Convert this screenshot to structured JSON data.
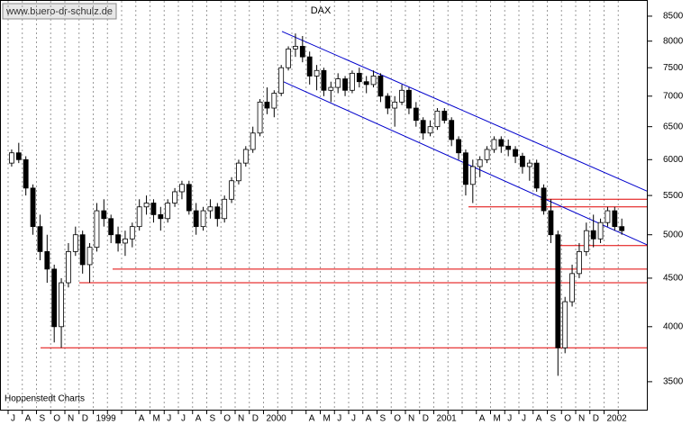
{
  "chart_data": {
    "type": "candlestick",
    "title": "DAX",
    "watermark": "www.buero-dr-schulz.de",
    "source": "Hoppenstedt Charts",
    "log_scale": true,
    "ylim": [
      3270,
      8840
    ],
    "yticks": [
      3500,
      4000,
      4500,
      5000,
      5500,
      6000,
      6500,
      7000,
      7500,
      8000,
      8500
    ],
    "categories": [
      "J",
      "A",
      "S",
      "O",
      "N",
      "D",
      "1999",
      null,
      null,
      "A",
      "M",
      "J",
      "J",
      "A",
      "S",
      "O",
      "N",
      "D",
      "2000",
      null,
      null,
      "A",
      "M",
      "J",
      "J",
      "A",
      "S",
      "O",
      "N",
      "D",
      "2001",
      null,
      null,
      "A",
      "M",
      "J",
      "J",
      "A",
      "S",
      "O",
      "N",
      "D",
      "2002",
      null
    ],
    "ohlc": [
      [
        5950,
        6150,
        5900,
        6100
      ],
      [
        6100,
        6250,
        5950,
        6000
      ],
      [
        6000,
        6050,
        5500,
        5600
      ],
      [
        5600,
        5650,
        5000,
        5100
      ],
      [
        5100,
        5250,
        4700,
        4800
      ],
      [
        4800,
        5000,
        4450,
        4600
      ],
      [
        4600,
        4650,
        3850,
        4000
      ],
      [
        4000,
        4500,
        3800,
        4450
      ],
      [
        4450,
        4900,
        4400,
        4800
      ],
      [
        4800,
        5100,
        4750,
        5000
      ],
      [
        5000,
        5050,
        4550,
        4650
      ],
      [
        4650,
        4900,
        4450,
        4850
      ],
      [
        4850,
        5400,
        4800,
        5300
      ],
      [
        5300,
        5450,
        5100,
        5200
      ],
      [
        5200,
        5250,
        4900,
        5000
      ],
      [
        5000,
        5100,
        4800,
        4900
      ],
      [
        4900,
        5050,
        4750,
        4950
      ],
      [
        4950,
        5150,
        4850,
        5100
      ],
      [
        5100,
        5450,
        5050,
        5350
      ],
      [
        5350,
        5500,
        5250,
        5400
      ],
      [
        5400,
        5450,
        5150,
        5250
      ],
      [
        5250,
        5350,
        5050,
        5200
      ],
      [
        5200,
        5450,
        5150,
        5400
      ],
      [
        5400,
        5600,
        5350,
        5550
      ],
      [
        5550,
        5700,
        5450,
        5650
      ],
      [
        5650,
        5700,
        5250,
        5300
      ],
      [
        5300,
        5400,
        5000,
        5100
      ],
      [
        5100,
        5350,
        5050,
        5300
      ],
      [
        5300,
        5450,
        5200,
        5350
      ],
      [
        5350,
        5400,
        5100,
        5200
      ],
      [
        5200,
        5500,
        5150,
        5450
      ],
      [
        5450,
        5750,
        5400,
        5700
      ],
      [
        5700,
        6000,
        5650,
        5950
      ],
      [
        5950,
        6200,
        5900,
        6150
      ],
      [
        6150,
        6500,
        6100,
        6400
      ],
      [
        6400,
        6950,
        6350,
        6900
      ],
      [
        6900,
        7150,
        6700,
        6800
      ],
      [
        6800,
        7100,
        6650,
        7050
      ],
      [
        7050,
        7550,
        7000,
        7500
      ],
      [
        7500,
        7900,
        7450,
        7850
      ],
      [
        7850,
        8150,
        7700,
        7900
      ],
      [
        7900,
        8100,
        7600,
        7700
      ],
      [
        7700,
        7800,
        7200,
        7350
      ],
      [
        7350,
        7550,
        7100,
        7450
      ],
      [
        7450,
        7500,
        7000,
        7100
      ],
      [
        7100,
        7250,
        6900,
        7150
      ],
      [
        7150,
        7400,
        7050,
        7300
      ],
      [
        7300,
        7350,
        7000,
        7100
      ],
      [
        7100,
        7450,
        7050,
        7400
      ],
      [
        7400,
        7500,
        7150,
        7250
      ],
      [
        7250,
        7350,
        7050,
        7200
      ],
      [
        7200,
        7450,
        7150,
        7350
      ],
      [
        7350,
        7400,
        6900,
        7000
      ],
      [
        7000,
        7050,
        6700,
        6800
      ],
      [
        6800,
        7000,
        6500,
        6900
      ],
      [
        6900,
        7200,
        6850,
        7100
      ],
      [
        7100,
        7150,
        6700,
        6800
      ],
      [
        6800,
        6900,
        6500,
        6600
      ],
      [
        6600,
        6650,
        6300,
        6400
      ],
      [
        6400,
        6600,
        6350,
        6500
      ],
      [
        6500,
        6800,
        6450,
        6750
      ],
      [
        6750,
        6800,
        6550,
        6600
      ],
      [
        6600,
        6650,
        6200,
        6300
      ],
      [
        6300,
        6350,
        6000,
        6100
      ],
      [
        6100,
        6150,
        5500,
        5650
      ],
      [
        5650,
        6000,
        5400,
        5900
      ],
      [
        5900,
        6050,
        5750,
        6000
      ],
      [
        6000,
        6200,
        5950,
        6150
      ],
      [
        6150,
        6350,
        6100,
        6300
      ],
      [
        6300,
        6350,
        6100,
        6200
      ],
      [
        6200,
        6300,
        6050,
        6150
      ],
      [
        6150,
        6200,
        5950,
        6050
      ],
      [
        6050,
        6100,
        5800,
        5900
      ],
      [
        5900,
        6000,
        5700,
        5950
      ],
      [
        5950,
        6000,
        5550,
        5600
      ],
      [
        5600,
        5650,
        5250,
        5300
      ],
      [
        5300,
        5450,
        4900,
        5000
      ],
      [
        5000,
        5050,
        3550,
        3800
      ],
      [
        3800,
        4300,
        3750,
        4250
      ],
      [
        4250,
        4650,
        4200,
        4550
      ],
      [
        4550,
        4900,
        4500,
        4800
      ],
      [
        4800,
        5150,
        4750,
        5050
      ],
      [
        5050,
        5250,
        4850,
        4950
      ],
      [
        4950,
        5200,
        4900,
        5150
      ],
      [
        5150,
        5350,
        5100,
        5300
      ],
      [
        5300,
        5350,
        5050,
        5100
      ],
      [
        5100,
        5200,
        5000,
        5050
      ]
    ],
    "up_color": "#ffffff",
    "down_color": "#000000",
    "trendlines": [
      [
        8190,
        5560
      ],
      [
        7260,
        4880
      ]
    ],
    "trend_color": "#0000cc",
    "hlines": [
      3800,
      4450,
      4600,
      4870,
      5350,
      5450
    ],
    "hline_color": "#e00000",
    "grid": true
  }
}
